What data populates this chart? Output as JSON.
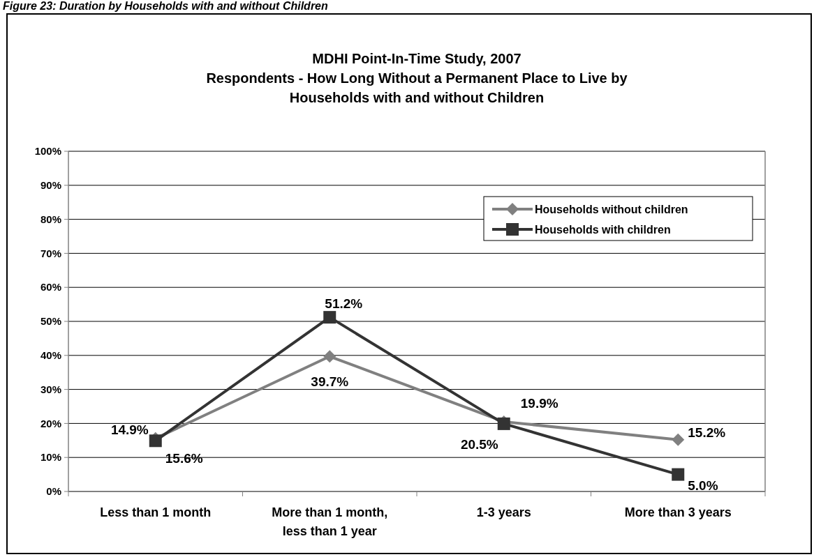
{
  "chart_data": {
    "type": "line",
    "title": "MDHI Point-In-Time Study, 2007\nRespondents - How Long Without a Permanent Place to Live by\nHouseholds with and without Children",
    "annotations": [
      "Figure 23: Duration by Households with and without Children"
    ],
    "categories": [
      "Less than 1 month",
      "More than 1 month,\nless than 1 year",
      "1-3 years",
      "More than 3 years"
    ],
    "series": [
      {
        "name": "Households without children",
        "color": "#808080",
        "values": [
          15.6,
          39.7,
          20.5,
          15.2
        ],
        "marker": "diamond",
        "value_labels": [
          "15.6%",
          "39.7%",
          "20.5%",
          "15.2%"
        ]
      },
      {
        "name": "Households with children",
        "color": "#333333",
        "values": [
          14.9,
          51.2,
          19.9,
          5.0
        ],
        "marker": "square",
        "value_labels": [
          "14.9%",
          "51.2%",
          "19.9%",
          "5.0%"
        ]
      }
    ],
    "ylim": [
      0,
      100
    ],
    "yticks": [
      {
        "value": 0,
        "label": "0%"
      },
      {
        "value": 10,
        "label": "10%"
      },
      {
        "value": 20,
        "label": "20%"
      },
      {
        "value": 30,
        "label": "30%"
      },
      {
        "value": 40,
        "label": "40%"
      },
      {
        "value": 50,
        "label": "50%"
      },
      {
        "value": 60,
        "label": "60%"
      },
      {
        "value": 70,
        "label": "70%"
      },
      {
        "value": 80,
        "label": "80%"
      },
      {
        "value": 90,
        "label": "90%"
      },
      {
        "value": 100,
        "label": "100%"
      }
    ],
    "grid": "y",
    "legend": "top right",
    "line_style": "solid"
  }
}
